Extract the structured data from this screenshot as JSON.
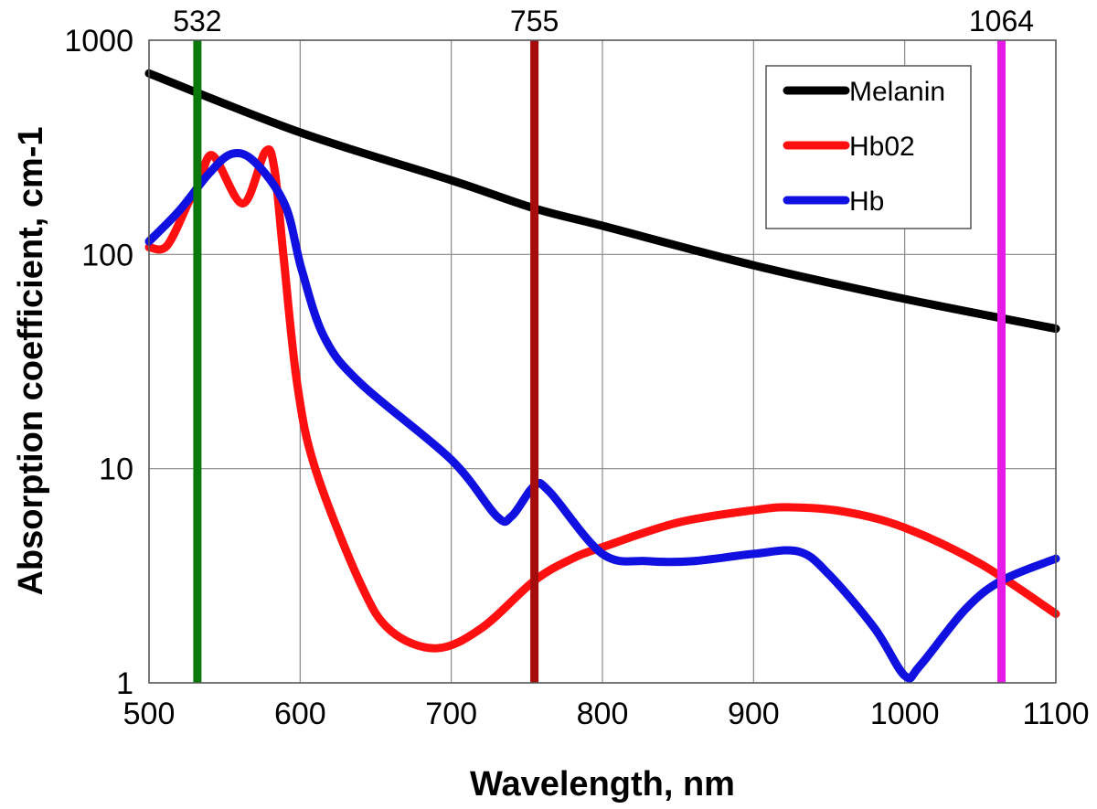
{
  "chart_data": {
    "type": "line",
    "title": "",
    "xlabel": "Wavelength, nm",
    "ylabel": "Absorption coefficient, cm-1",
    "xlim": [
      500,
      1100
    ],
    "ylim": [
      1,
      1000
    ],
    "yscale": "log",
    "grid": true,
    "legend_position": "top-right",
    "x_ticks": [
      "500",
      "600",
      "700",
      "800",
      "900",
      "1000",
      "1100"
    ],
    "y_ticks": [
      "1",
      "10",
      "100",
      "1000"
    ],
    "series": [
      {
        "name": "Melanin",
        "color": "#000000",
        "x": [
          500,
          600,
          700,
          755,
          800,
          900,
          1000,
          1100
        ],
        "y": [
          700,
          371,
          222,
          164,
          136,
          89,
          62,
          45
        ]
      },
      {
        "name": "Hb02",
        "color": "#ff1010",
        "x": [
          500,
          512,
          527,
          533,
          542,
          562,
          577,
          583,
          589,
          598,
          610,
          640,
          660,
          690,
          720,
          755,
          780,
          800,
          850,
          900,
          925,
          960,
          1000,
          1050,
          1100
        ],
        "y": [
          108,
          110,
          180,
          210,
          290,
          173,
          302,
          250,
          98,
          25,
          10,
          2.9,
          1.75,
          1.45,
          1.8,
          3.0,
          3.8,
          4.3,
          5.6,
          6.4,
          6.6,
          6.3,
          5.3,
          3.6,
          2.1
        ]
      },
      {
        "name": "Hb",
        "color": "#1010e0",
        "x": [
          500,
          520,
          540,
          555,
          570,
          590,
          601,
          616,
          640,
          700,
          730,
          740,
          755,
          765,
          800,
          830,
          860,
          900,
          930,
          950,
          980,
          1000,
          1010,
          1040,
          1064,
          1100
        ],
        "y": [
          115,
          160,
          240,
          295,
          270,
          170,
          85,
          41,
          25,
          11,
          6,
          6,
          8.3,
          7.8,
          4.0,
          3.7,
          3.7,
          4.0,
          4.1,
          3.2,
          1.8,
          1.08,
          1.2,
          2.2,
          3.0,
          3.8
        ]
      }
    ],
    "markers": [
      {
        "label": "532",
        "x": 532,
        "color": "#0a780a"
      },
      {
        "label": "755",
        "x": 755,
        "color": "#a50c0c"
      },
      {
        "label": "1064",
        "x": 1064,
        "color": "#e619e6"
      }
    ]
  }
}
